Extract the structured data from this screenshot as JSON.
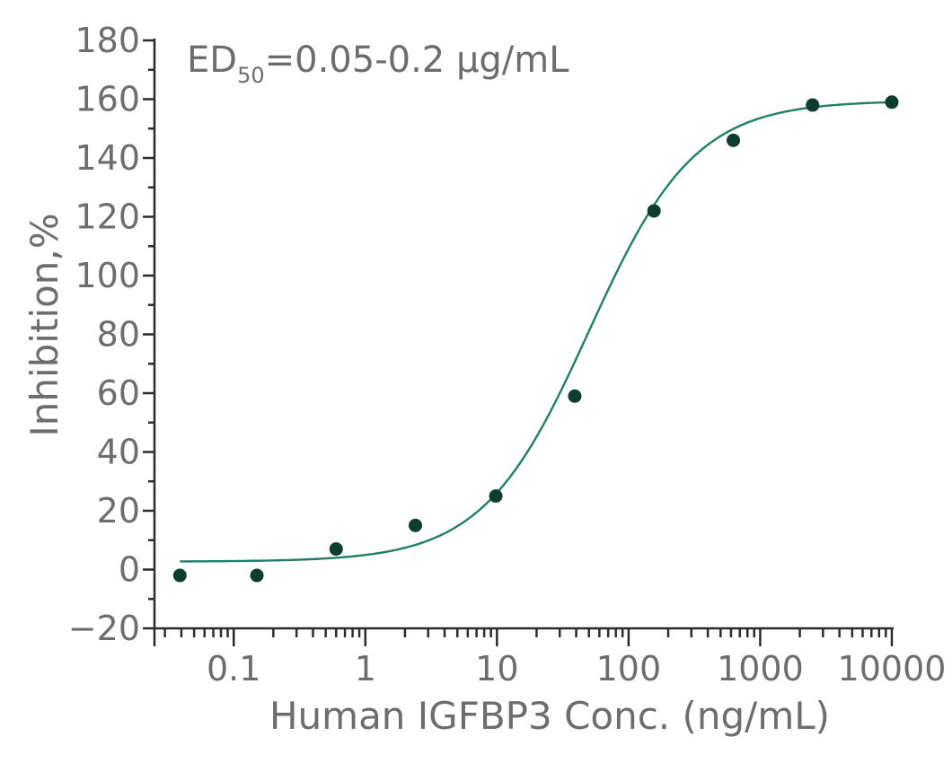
{
  "chart_data": {
    "type": "scatter",
    "xlabel": "Human IGFBP3 Conc. (ng/mL)",
    "ylabel": "Inhibition,%",
    "x_scale": "log",
    "xlim": [
      0.025,
      10000
    ],
    "ylim": [
      -20,
      180
    ],
    "y_ticks": [
      -20,
      0,
      20,
      40,
      60,
      80,
      100,
      120,
      140,
      160,
      180
    ],
    "y_tick_labels": [
      "−20",
      "0",
      "20",
      "40",
      "60",
      "80",
      "100",
      "120",
      "140",
      "160",
      "180"
    ],
    "x_ticks": [
      0.1,
      1,
      10,
      100,
      1000,
      10000
    ],
    "x_tick_labels": [
      "0.1",
      "1",
      "10",
      "100",
      "1000",
      "10000"
    ],
    "grid": false,
    "annotation": {
      "prefix": "ED",
      "subscript": "50",
      "suffix": "=0.05-0.2 µg/mL"
    },
    "colors": {
      "points": "#0d3d2e",
      "curve": "#1f7f67",
      "text": "#6d6d6d",
      "axis": "#2b2b2b"
    },
    "series": [
      {
        "x": [
          0.039,
          0.15,
          0.6,
          2.4,
          9.8,
          39,
          156,
          625,
          2500,
          10000
        ],
        "y": [
          -2,
          -2,
          7,
          15,
          25,
          59,
          122,
          146,
          158,
          159
        ]
      }
    ],
    "fit_curve": {
      "bottom": 2.7,
      "top": 159.5,
      "ec50": 50,
      "hill": 1.08
    }
  }
}
